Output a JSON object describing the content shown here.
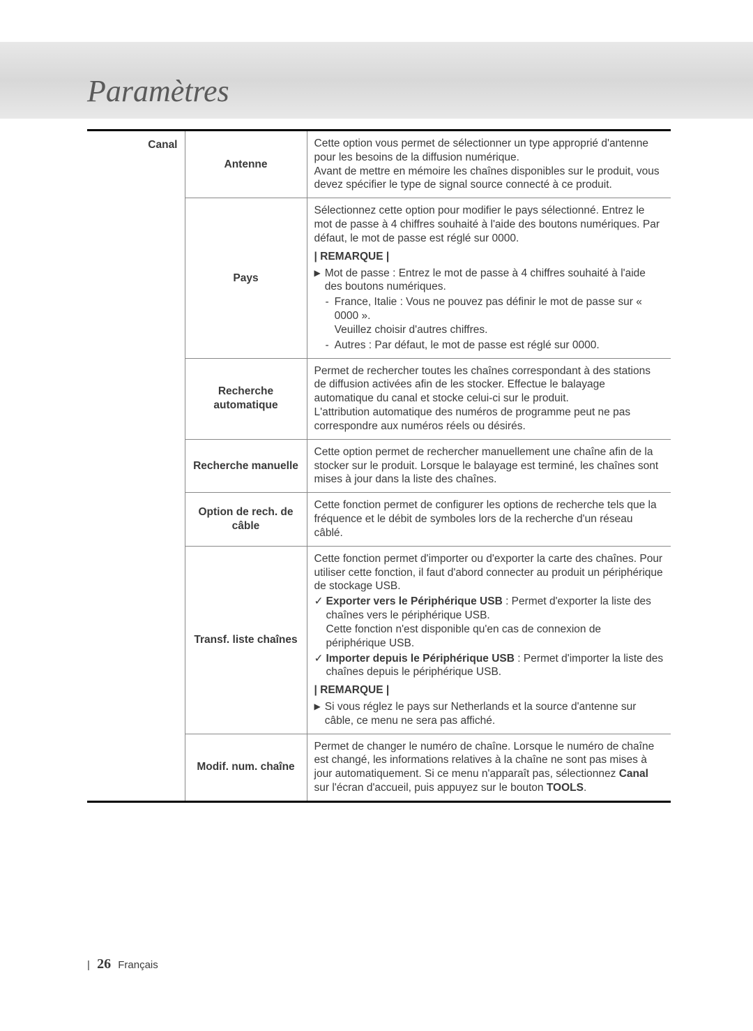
{
  "title": "Paramètres",
  "section": "Canal",
  "rows": {
    "antenne": {
      "label": "Antenne",
      "desc_p1": "Cette option vous permet de sélectionner un type approprié d'antenne pour les besoins de la diffusion numérique.",
      "desc_p2": "Avant de mettre en mémoire les chaînes disponibles sur le produit, vous devez spécifier le type de signal source connecté à ce produit."
    },
    "pays": {
      "label": "Pays",
      "desc_p1": "Sélectionnez cette option pour modifier le pays sélectionné. Entrez le mot de passe à 4 chiffres souhaité à l'aide des boutons numériques. Par défaut, le mot de passe est réglé sur 0000.",
      "remark_label": "| REMARQUE |",
      "bullet": "Mot de passe : Entrez le mot de passe à 4 chiffres souhaité à l'aide des boutons numériques.",
      "sub1_a": "France, Italie : Vous ne pouvez pas définir le mot de passe sur « 0000 ».",
      "sub1_b": "Veuillez choisir d'autres chiffres.",
      "sub2": "Autres : Par défaut, le mot de passe est réglé sur 0000."
    },
    "recherche_auto": {
      "label": "Recherche automatique",
      "desc_p1": "Permet de rechercher toutes les chaînes correspondant à des stations de diffusion activées afin de les stocker. Effectue le balayage automatique du canal et stocke celui-ci sur le produit.",
      "desc_p2": "L'attribution automatique des numéros de programme peut ne pas correspondre aux numéros réels ou désirés."
    },
    "recherche_man": {
      "label": "Recherche manuelle",
      "desc": "Cette option permet de rechercher manuellement une chaîne afin de la stocker sur le produit. Lorsque le balayage est terminé, les chaînes sont mises à jour dans la liste des chaînes."
    },
    "option_cable": {
      "label": "Option de rech. de câble",
      "desc": "Cette fonction permet de configurer les options de recherche tels que la fréquence et le débit de symboles lors de la recherche d'un réseau câblé."
    },
    "transf": {
      "label": "Transf. liste chaînes",
      "desc_p1": "Cette fonction permet d'importer ou d'exporter la carte des chaînes. Pour utiliser cette fonction, il faut d'abord connecter au produit un périphérique de stockage USB.",
      "c1_bold": "Exporter vers le Périphérique USB",
      "c1_rest": " : Permet d'exporter la liste des chaînes vers le périphérique USB.",
      "c1_p2": "Cette fonction n'est disponible qu'en cas de connexion de périphérique USB.",
      "c2_bold": "Importer depuis le Périphérique USB",
      "c2_rest": " : Permet d'importer la liste des chaînes depuis le périphérique USB.",
      "remark_label": "| REMARQUE |",
      "bullet": "Si vous réglez le pays sur Netherlands et la source d'antenne sur câble, ce menu ne sera pas affiché."
    },
    "modif": {
      "label": "Modif. num. chaîne",
      "desc_a": "Permet de changer le numéro de chaîne. Lorsque le numéro de chaîne est changé, les informations relatives à la chaîne ne sont pas mises à jour automatiquement. Si ce menu n'apparaît pas, sélectionnez ",
      "desc_bold1": "Canal",
      "desc_b": " sur l'écran d'accueil, puis appuyez sur le bouton ",
      "desc_bold2": "TOOLS",
      "desc_c": "."
    }
  },
  "footer": {
    "page_num": "26",
    "lang": "Français"
  }
}
